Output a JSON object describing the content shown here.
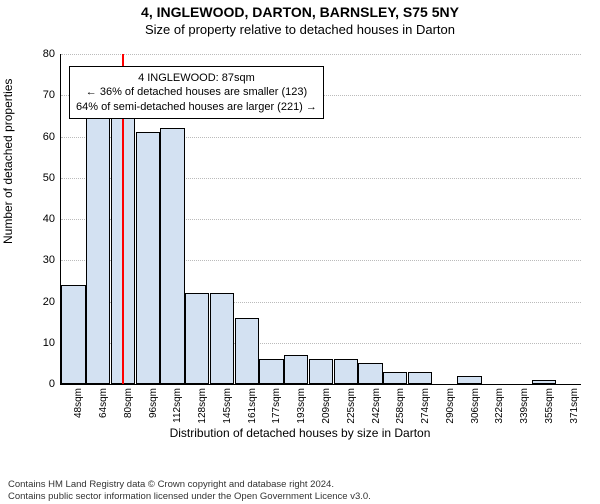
{
  "title": "4, INGLEWOOD, DARTON, BARNSLEY, S75 5NY",
  "subtitle": "Size of property relative to detached houses in Darton",
  "yaxis_label": "Number of detached properties",
  "xaxis_label": "Distribution of detached houses by size in Darton",
  "chart": {
    "type": "bar",
    "bar_fill": "#d3e1f2",
    "bar_stroke": "#000000",
    "grid_color": "#bbbbbb",
    "marker_color": "#ff0000",
    "marker_x_index": 2.45,
    "ylim": [
      0,
      80
    ],
    "ytick_step": 10,
    "categories": [
      "48sqm",
      "64sqm",
      "80sqm",
      "96sqm",
      "112sqm",
      "128sqm",
      "145sqm",
      "161sqm",
      "177sqm",
      "193sqm",
      "209sqm",
      "225sqm",
      "242sqm",
      "258sqm",
      "274sqm",
      "290sqm",
      "306sqm",
      "322sqm",
      "339sqm",
      "355sqm",
      "371sqm"
    ],
    "values": [
      24,
      67,
      67,
      61,
      62,
      22,
      22,
      16,
      6,
      7,
      6,
      6,
      5,
      3,
      3,
      0,
      2,
      0,
      0,
      1,
      0
    ]
  },
  "annotation": {
    "line1": "4 INGLEWOOD: 87sqm",
    "line2": "← 36% of detached houses are smaller (123)",
    "line3": "64% of semi-detached houses are larger (221) →"
  },
  "footer": {
    "line1": "Contains HM Land Registry data © Crown copyright and database right 2024.",
    "line2": "Contains public sector information licensed under the Open Government Licence v3.0."
  }
}
